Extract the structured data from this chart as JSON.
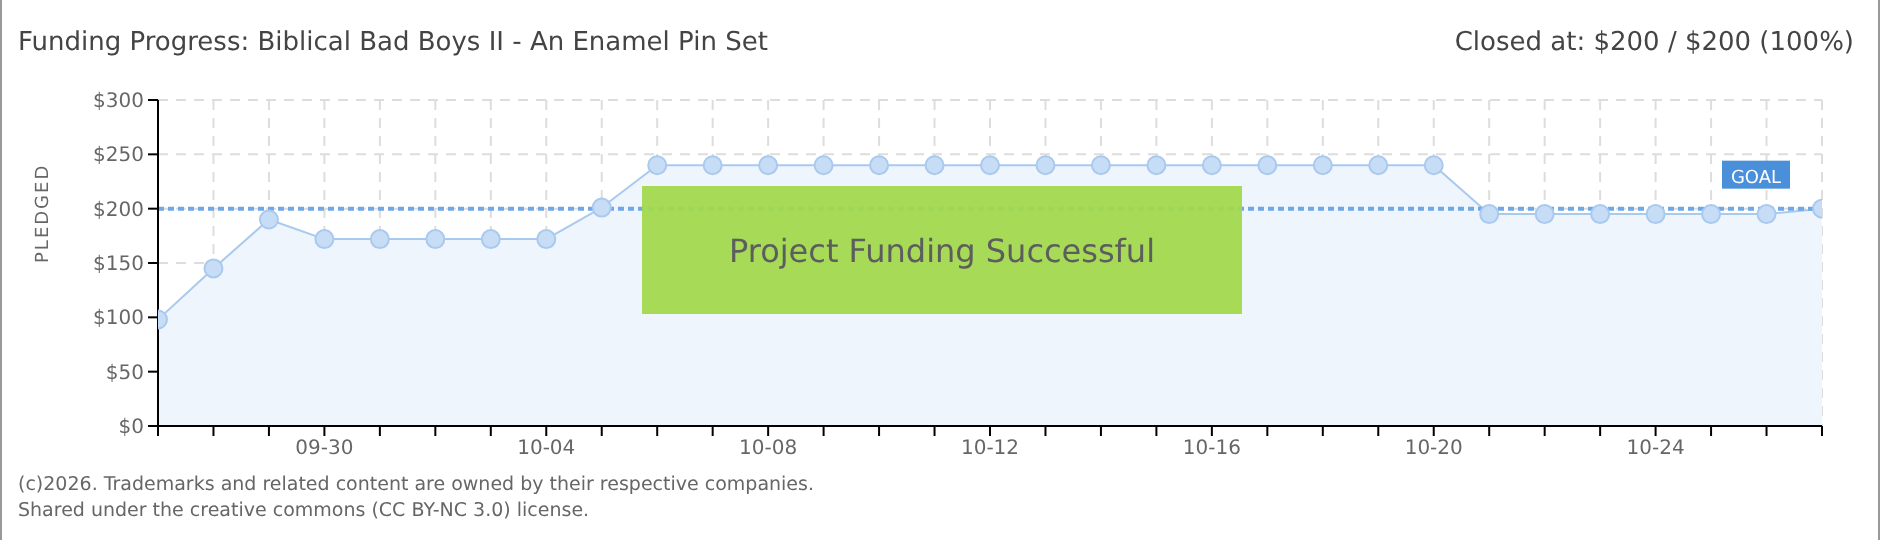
{
  "chart_data": {
    "type": "area",
    "title": "Funding Progress: Biblical Bad Boys II - An Enamel Pin Set",
    "subtitle": "Closed at: $200 / $200 (100%)",
    "ylabel": "PLEDGED",
    "categories": [
      null,
      null,
      null,
      "09-30",
      null,
      null,
      null,
      "10-04",
      null,
      null,
      null,
      "10-08",
      null,
      null,
      null,
      "10-12",
      null,
      null,
      null,
      "10-16",
      null,
      null,
      null,
      "10-20",
      null,
      null,
      null,
      "10-24",
      null,
      null,
      null
    ],
    "series": [
      {
        "color": "#a9c9ef",
        "values": [
          98,
          145,
          190,
          172,
          172,
          172,
          172,
          172,
          201,
          240,
          240,
          240,
          240,
          240,
          240,
          240,
          240,
          240,
          240,
          240,
          240,
          240,
          240,
          240,
          195,
          195,
          195,
          195,
          195,
          195,
          200
        ]
      }
    ],
    "ylim": [
      0,
      300
    ],
    "yticks": [
      {
        "value": 0,
        "label": "$0"
      },
      {
        "value": 50,
        "label": "$50"
      },
      {
        "value": 100,
        "label": "$100"
      },
      {
        "value": 150,
        "label": "$150"
      },
      {
        "value": 200,
        "label": "$200"
      },
      {
        "value": 250,
        "label": "$250"
      },
      {
        "value": 300,
        "label": "$300"
      }
    ],
    "ref_lines": [
      {
        "axis": "y",
        "value": 200,
        "label": "GOAL",
        "color": "#6fa8e6",
        "line_style": "dotted"
      }
    ],
    "annotations": [
      "Project Funding Successful",
      "(c)2026. Trademarks and related content are owned by their respective companies.",
      "Shared under the creative commons (CC BY-NC 3.0) license."
    ],
    "grid": true,
    "marker": "circle"
  }
}
